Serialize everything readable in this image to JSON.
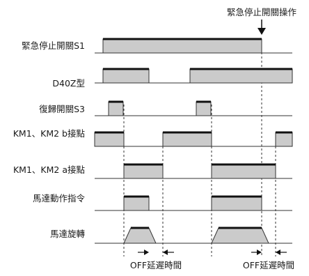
{
  "diagram": {
    "top_annotation": "緊急停止開關操作",
    "signals": [
      {
        "id": "emergency-stop-s1",
        "label": "緊急停止開關S1"
      },
      {
        "id": "d40z",
        "label": "D40Z型"
      },
      {
        "id": "reset-s3",
        "label": "復歸開關S3"
      },
      {
        "id": "km-b-contact",
        "label": "KM1、KM2 b接點"
      },
      {
        "id": "km-a-contact",
        "label": "KM1、KM2 a接點"
      },
      {
        "id": "motor-command",
        "label": "馬達動作指令"
      },
      {
        "id": "motor-rotation",
        "label": "馬達旋轉"
      }
    ],
    "delay_labels": [
      "OFF延遲時間",
      "OFF延遲時間"
    ],
    "colors": {
      "fill": "#cbcbcb",
      "line": "#222222",
      "highline": "#111111",
      "dashed": "#333333"
    }
  }
}
